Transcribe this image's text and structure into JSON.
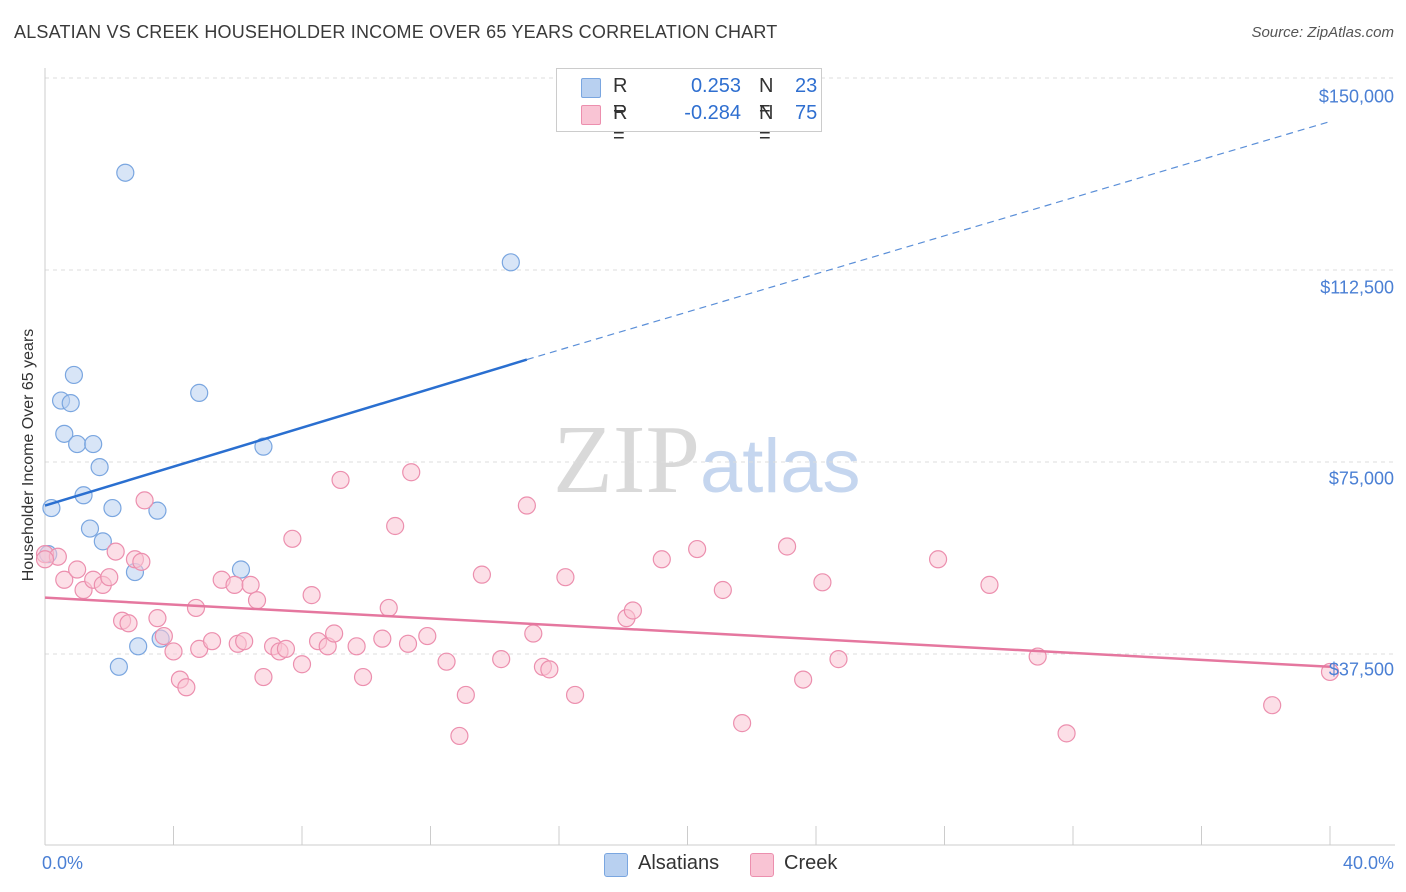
{
  "title": "ALSATIAN VS CREEK HOUSEHOLDER INCOME OVER 65 YEARS CORRELATION CHART",
  "source": "Source: ZipAtlas.com",
  "watermark": {
    "zip": "ZIP",
    "atlas": "atlas"
  },
  "legend": {
    "rows": [
      {
        "r_label": "R =",
        "r_value": "0.253",
        "n_label": "N =",
        "n_value": "23",
        "color": "#b8d0f0",
        "border": "#7aa6e0"
      },
      {
        "r_label": "R =",
        "r_value": "-0.284",
        "n_label": "N =",
        "n_value": "75",
        "color": "#f9c4d4",
        "border": "#ec8fae"
      }
    ]
  },
  "bottom_legend": [
    {
      "label": "Alsatians",
      "color": "#b8d0f0",
      "border": "#7aa6e0"
    },
    {
      "label": "Creek",
      "color": "#f9c4d4",
      "border": "#ec8fae"
    }
  ],
  "chart_data": {
    "type": "scatter",
    "title": "ALSATIAN VS CREEK HOUSEHOLDER INCOME OVER 65 YEARS CORRELATION CHART",
    "xlabel": "",
    "ylabel": "Householder Income Over 65 years",
    "xlim": [
      0,
      40
    ],
    "ylim": [
      0,
      155000
    ],
    "x_tick_labels": [
      "0.0%",
      "40.0%"
    ],
    "y_ticks": [
      37500,
      75000,
      112500,
      150000
    ],
    "y_tick_labels": [
      "$37,500",
      "$75,000",
      "$112,500",
      "$150,000"
    ],
    "grid": true,
    "legend_position": "top-center",
    "series": [
      {
        "name": "Alsatians",
        "color": "#7aa6e0",
        "fill": "#b8d0f0",
        "points": [
          [
            2.5,
            131500
          ],
          [
            14.5,
            114000
          ],
          [
            0.9,
            92000
          ],
          [
            4.8,
            88500
          ],
          [
            0.5,
            87000
          ],
          [
            0.8,
            86500
          ],
          [
            0.6,
            80500
          ],
          [
            1.0,
            78500
          ],
          [
            1.5,
            78500
          ],
          [
            6.8,
            78000
          ],
          [
            1.7,
            74000
          ],
          [
            0.2,
            66000
          ],
          [
            1.2,
            68500
          ],
          [
            2.1,
            66000
          ],
          [
            3.5,
            65500
          ],
          [
            1.4,
            62000
          ],
          [
            1.8,
            59500
          ],
          [
            0.1,
            57000
          ],
          [
            6.1,
            54000
          ],
          [
            2.8,
            53500
          ],
          [
            3.6,
            40500
          ],
          [
            2.9,
            39000
          ],
          [
            2.3,
            35000
          ]
        ],
        "trend": {
          "x0": 0,
          "y0": 66500,
          "x1": 15,
          "y1": 95000,
          "x_dash_end": 40,
          "y_dash_end": 141500
        }
      },
      {
        "name": "Creek",
        "color": "#ec8fae",
        "fill": "#f9c4d4",
        "points": [
          [
            0.0,
            57000
          ],
          [
            0.4,
            56500
          ],
          [
            0.6,
            52000
          ],
          [
            1.0,
            54000
          ],
          [
            1.2,
            50000
          ],
          [
            1.5,
            52000
          ],
          [
            1.8,
            51000
          ],
          [
            2.0,
            52500
          ],
          [
            2.2,
            57500
          ],
          [
            2.4,
            44000
          ],
          [
            2.6,
            43500
          ],
          [
            2.8,
            56000
          ],
          [
            3.0,
            55500
          ],
          [
            3.1,
            67500
          ],
          [
            3.5,
            44500
          ],
          [
            3.7,
            41000
          ],
          [
            4.0,
            38000
          ],
          [
            4.2,
            32500
          ],
          [
            4.4,
            31000
          ],
          [
            4.7,
            46500
          ],
          [
            4.8,
            38500
          ],
          [
            5.2,
            40000
          ],
          [
            5.5,
            52000
          ],
          [
            5.9,
            51000
          ],
          [
            6.0,
            39500
          ],
          [
            6.2,
            40000
          ],
          [
            6.4,
            51000
          ],
          [
            6.6,
            48000
          ],
          [
            6.8,
            33000
          ],
          [
            7.1,
            39000
          ],
          [
            7.3,
            38000
          ],
          [
            7.5,
            38500
          ],
          [
            7.7,
            60000
          ],
          [
            8.0,
            35500
          ],
          [
            8.3,
            49000
          ],
          [
            8.5,
            40000
          ],
          [
            8.8,
            39000
          ],
          [
            9.0,
            41500
          ],
          [
            9.2,
            71500
          ],
          [
            9.7,
            39000
          ],
          [
            9.9,
            33000
          ],
          [
            10.5,
            40500
          ],
          [
            10.7,
            46500
          ],
          [
            10.9,
            62500
          ],
          [
            11.3,
            39500
          ],
          [
            11.4,
            73000
          ],
          [
            11.9,
            41000
          ],
          [
            12.5,
            36000
          ],
          [
            12.9,
            21500
          ],
          [
            13.1,
            29500
          ],
          [
            13.6,
            53000
          ],
          [
            14.2,
            36500
          ],
          [
            15.0,
            66500
          ],
          [
            15.2,
            41500
          ],
          [
            15.5,
            35000
          ],
          [
            15.7,
            34500
          ],
          [
            16.2,
            52500
          ],
          [
            16.5,
            29500
          ],
          [
            18.1,
            44500
          ],
          [
            18.3,
            46000
          ],
          [
            19.2,
            56000
          ],
          [
            20.3,
            58000
          ],
          [
            21.1,
            50000
          ],
          [
            21.7,
            24000
          ],
          [
            23.1,
            58500
          ],
          [
            23.6,
            32500
          ],
          [
            24.2,
            51500
          ],
          [
            24.7,
            36500
          ],
          [
            27.8,
            56000
          ],
          [
            29.4,
            51000
          ],
          [
            30.9,
            37000
          ],
          [
            31.8,
            22000
          ],
          [
            38.2,
            27500
          ],
          [
            40.0,
            34000
          ],
          [
            0.0,
            56000
          ]
        ],
        "trend": {
          "x0": 0,
          "y0": 48500,
          "x1": 40,
          "y1": 35000
        }
      }
    ]
  }
}
